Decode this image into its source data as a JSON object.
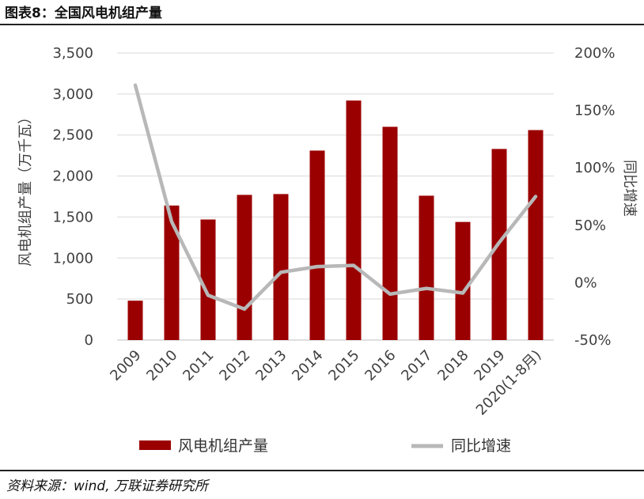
{
  "header": {
    "title": "图表8：全国风电机组产量"
  },
  "footer": {
    "source": "资料来源：wind, 万联证券研究所"
  },
  "colors": {
    "bar": "#9b0000",
    "line": "#b8b8b8",
    "grid": "#d9d9d9",
    "axis": "#bfbfbf"
  },
  "chart_data": {
    "type": "bar",
    "categories": [
      "2009",
      "2010",
      "2011",
      "2012",
      "2013",
      "2014",
      "2015",
      "2016",
      "2017",
      "2018",
      "2019",
      "2020(1-8月)"
    ],
    "series": [
      {
        "name": "风电机组产量",
        "type": "bar",
        "axis": "left",
        "values": [
          480,
          1640,
          1470,
          1770,
          1780,
          2310,
          2920,
          2600,
          1760,
          1440,
          2330,
          2560
        ]
      },
      {
        "name": "同比增速",
        "type": "line",
        "axis": "right",
        "values": [
          172,
          53,
          -11,
          -23,
          9,
          14,
          15,
          -10,
          -5,
          -9,
          35,
          75
        ]
      }
    ],
    "y_left": {
      "label": "风电机组产量（万千瓦）",
      "lim": [
        0,
        3500
      ],
      "ticks": [
        0,
        500,
        1000,
        1500,
        2000,
        2500,
        3000,
        3500
      ],
      "tick_labels": [
        "0",
        "500",
        "1,000",
        "1,500",
        "2,000",
        "2,500",
        "3,000",
        "3,500"
      ]
    },
    "y_right": {
      "label": "同比增速",
      "lim": [
        -50,
        200
      ],
      "ticks": [
        -50,
        0,
        50,
        100,
        150,
        200
      ],
      "tick_labels": [
        "-50%",
        "0%",
        "50%",
        "100%",
        "150%",
        "200%"
      ]
    },
    "grid": true,
    "legend": "bottom"
  }
}
